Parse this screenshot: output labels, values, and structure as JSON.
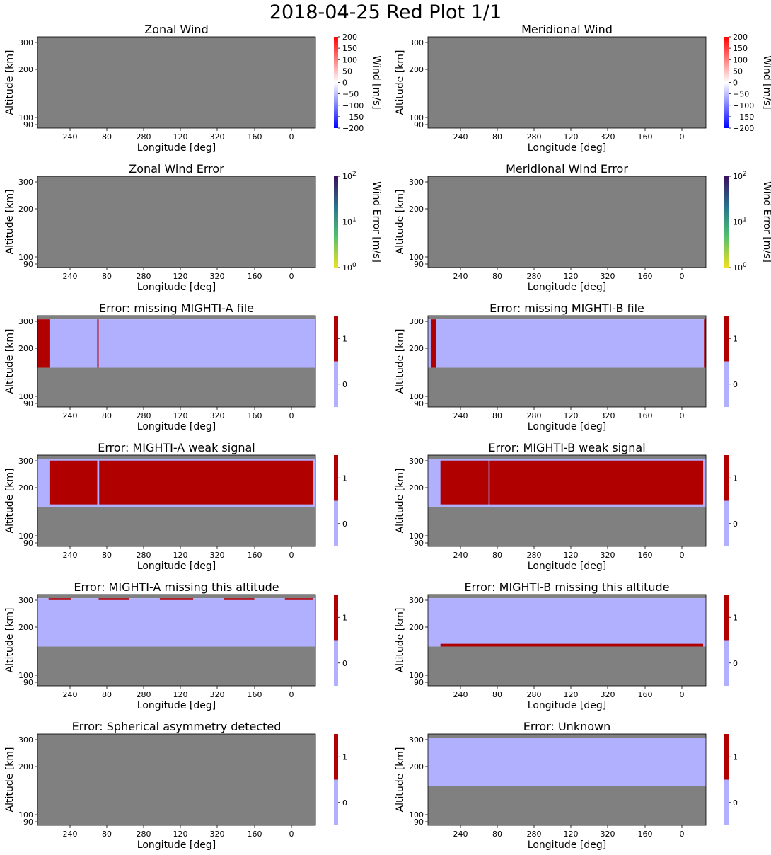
{
  "suptitle": "2018-04-25 Red Plot 1/1",
  "colors": {
    "nodata": "#808080",
    "flag_zero": "#b0b0ff",
    "flag_one": "#b00000"
  },
  "chart_data": [
    {
      "id": "zonal-wind",
      "type": "heatmap",
      "title": "Zonal Wind",
      "xlabel": "Longitude [deg]",
      "ylabel": "Altitude [km]",
      "xticks": [
        "240",
        "80",
        "280",
        "120",
        "320",
        "160",
        "0"
      ],
      "yticks": [
        "300",
        "200",
        "100",
        "90"
      ],
      "colorbar": {
        "kind": "diverging",
        "label": "Wind [m/s]",
        "ticks": [
          "200",
          "150",
          "100",
          "50",
          "0",
          "−50",
          "−100",
          "−150",
          "−200"
        ],
        "range": [
          -200,
          200
        ]
      },
      "content": "all-nodata"
    },
    {
      "id": "meridional-wind",
      "type": "heatmap",
      "title": "Meridional Wind",
      "xlabel": "Longitude [deg]",
      "ylabel": "Altitude [km]",
      "xticks": [
        "240",
        "80",
        "280",
        "120",
        "320",
        "160",
        "0"
      ],
      "yticks": [
        "300",
        "200",
        "100",
        "90"
      ],
      "colorbar": {
        "kind": "diverging",
        "label": "Wind [m/s]",
        "ticks": [
          "200",
          "150",
          "100",
          "50",
          "0",
          "−50",
          "−100",
          "−150",
          "−200"
        ],
        "range": [
          -200,
          200
        ]
      },
      "content": "all-nodata"
    },
    {
      "id": "zonal-wind-error",
      "type": "heatmap",
      "title": "Zonal Wind Error",
      "xlabel": "Longitude [deg]",
      "ylabel": "Altitude [km]",
      "xticks": [
        "240",
        "80",
        "280",
        "120",
        "320",
        "160",
        "0"
      ],
      "yticks": [
        "300",
        "200",
        "100",
        "90"
      ],
      "colorbar": {
        "kind": "log",
        "label": "Wind Error [m/s]",
        "ticks": [
          {
            "base": "10",
            "exp": "2"
          },
          {
            "base": "10",
            "exp": "1"
          },
          {
            "base": "10",
            "exp": "0"
          }
        ],
        "range": [
          1,
          100
        ]
      },
      "content": "all-nodata"
    },
    {
      "id": "meridional-wind-error",
      "type": "heatmap",
      "title": "Meridional Wind Error",
      "xlabel": "Longitude [deg]",
      "ylabel": "Altitude [km]",
      "xticks": [
        "240",
        "80",
        "280",
        "120",
        "320",
        "160",
        "0"
      ],
      "yticks": [
        "300",
        "200",
        "100",
        "90"
      ],
      "colorbar": {
        "kind": "log",
        "label": "Wind Error [m/s]",
        "ticks": [
          {
            "base": "10",
            "exp": "2"
          },
          {
            "base": "10",
            "exp": "1"
          },
          {
            "base": "10",
            "exp": "0"
          }
        ],
        "range": [
          1,
          100
        ]
      },
      "content": "all-nodata"
    },
    {
      "id": "missing-mighti-a",
      "type": "heatmap",
      "title": "Error: missing MIGHTI-A file",
      "xlabel": "Longitude [deg]",
      "ylabel": "Altitude [km]",
      "xticks": [
        "240",
        "80",
        "280",
        "120",
        "320",
        "160",
        "0"
      ],
      "yticks": [
        "300",
        "200",
        "100",
        "90"
      ],
      "colorbar": {
        "kind": "binary",
        "label": "",
        "ticks": [
          "1",
          "0"
        ]
      },
      "content": "flag",
      "flag_one_regions": "first orbit segment and one thin column near longitude 80"
    },
    {
      "id": "missing-mighti-b",
      "type": "heatmap",
      "title": "Error: missing MIGHTI-B file",
      "xlabel": "Longitude [deg]",
      "ylabel": "Altitude [km]",
      "xticks": [
        "240",
        "80",
        "280",
        "120",
        "320",
        "160",
        "0"
      ],
      "yticks": [
        "300",
        "200",
        "100",
        "90"
      ],
      "colorbar": {
        "kind": "binary",
        "label": "",
        "ticks": [
          "1",
          "0"
        ]
      },
      "content": "flag",
      "flag_one_regions": "narrow columns at both ends of the orbit"
    },
    {
      "id": "mighti-a-weak",
      "type": "heatmap",
      "title": "Error: MIGHTI-A weak signal",
      "xlabel": "Longitude [deg]",
      "ylabel": "Altitude [km]",
      "xticks": [
        "240",
        "80",
        "280",
        "120",
        "320",
        "160",
        "0"
      ],
      "yticks": [
        "300",
        "200",
        "100",
        "90"
      ],
      "colorbar": {
        "kind": "binary",
        "label": "",
        "ticks": [
          "1",
          "0"
        ]
      },
      "content": "flag",
      "flag_one_regions": "almost the whole observed altitude band"
    },
    {
      "id": "mighti-b-weak",
      "type": "heatmap",
      "title": "Error: MIGHTI-B weak signal",
      "xlabel": "Longitude [deg]",
      "ylabel": "Altitude [km]",
      "xticks": [
        "240",
        "80",
        "280",
        "120",
        "320",
        "160",
        "0"
      ],
      "yticks": [
        "300",
        "200",
        "100",
        "90"
      ],
      "colorbar": {
        "kind": "binary",
        "label": "",
        "ticks": [
          "1",
          "0"
        ]
      },
      "content": "flag",
      "flag_one_regions": "almost the whole observed altitude band"
    },
    {
      "id": "mighti-a-missing-alt",
      "type": "heatmap",
      "title": "Error: MIGHTI-A missing this altitude",
      "xlabel": "Longitude [deg]",
      "ylabel": "Altitude [km]",
      "xticks": [
        "240",
        "80",
        "280",
        "120",
        "320",
        "160",
        "0"
      ],
      "yticks": [
        "300",
        "200",
        "100",
        "90"
      ],
      "colorbar": {
        "kind": "binary",
        "label": "",
        "ticks": [
          "1",
          "0"
        ]
      },
      "content": "flag",
      "flag_one_regions": "thin strips at the top altitude"
    },
    {
      "id": "mighti-b-missing-alt",
      "type": "heatmap",
      "title": "Error: MIGHTI-B missing this altitude",
      "xlabel": "Longitude [deg]",
      "ylabel": "Altitude [km]",
      "xticks": [
        "240",
        "80",
        "280",
        "120",
        "320",
        "160",
        "0"
      ],
      "yticks": [
        "300",
        "200",
        "100",
        "90"
      ],
      "colorbar": {
        "kind": "binary",
        "label": "",
        "ticks": [
          "1",
          "0"
        ]
      },
      "content": "flag",
      "flag_one_regions": "thin strip at the bottom altitude"
    },
    {
      "id": "spherical-asymmetry",
      "type": "heatmap",
      "title": "Error: Spherical asymmetry detected",
      "xlabel": "Longitude [deg]",
      "ylabel": "Altitude [km]",
      "xticks": [
        "240",
        "80",
        "280",
        "120",
        "320",
        "160",
        "0"
      ],
      "yticks": [
        "300",
        "200",
        "100",
        "90"
      ],
      "colorbar": {
        "kind": "binary",
        "label": "",
        "ticks": [
          "1",
          "0"
        ]
      },
      "content": "all-nodata"
    },
    {
      "id": "unknown",
      "type": "heatmap",
      "title": "Error: Unknown",
      "xlabel": "Longitude [deg]",
      "ylabel": "Altitude [km]",
      "xticks": [
        "240",
        "80",
        "280",
        "120",
        "320",
        "160",
        "0"
      ],
      "yticks": [
        "300",
        "200",
        "100",
        "90"
      ],
      "colorbar": {
        "kind": "binary",
        "label": "",
        "ticks": [
          "1",
          "0"
        ]
      },
      "content": "flag",
      "flag_one_regions": "none"
    }
  ]
}
